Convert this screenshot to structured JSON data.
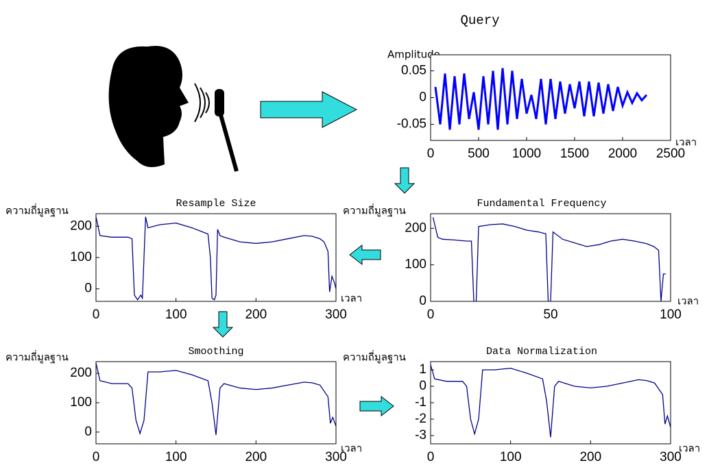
{
  "chart_data": [
    {
      "type": "line",
      "title": "Query",
      "ylabel": "Amplitude",
      "xlabel": "เวลา",
      "color": "#0000ff",
      "xlim": [
        0,
        2500
      ],
      "xticks": [
        0,
        500,
        1000,
        1500,
        2000,
        2500
      ],
      "ylim": [
        -0.08,
        0.08
      ],
      "yticks": [
        0.05,
        0,
        -0.05
      ],
      "x": [
        50,
        100,
        150,
        200,
        250,
        300,
        350,
        400,
        450,
        500,
        550,
        600,
        650,
        700,
        750,
        800,
        850,
        900,
        950,
        1000,
        1050,
        1100,
        1150,
        1200,
        1250,
        1300,
        1350,
        1400,
        1450,
        1500,
        1550,
        1600,
        1650,
        1700,
        1750,
        1800,
        1850,
        1900,
        1950,
        2000,
        2050,
        2100,
        2150,
        2200,
        2250
      ],
      "values": [
        0.02,
        -0.05,
        0.045,
        -0.06,
        0.04,
        -0.05,
        0.045,
        -0.04,
        0.01,
        -0.06,
        0.04,
        -0.05,
        0.05,
        -0.06,
        0.055,
        -0.05,
        0.05,
        -0.04,
        0.035,
        -0.03,
        0.005,
        -0.04,
        0.035,
        -0.05,
        0.035,
        -0.04,
        0.03,
        -0.03,
        0.025,
        -0.02,
        0.03,
        -0.035,
        0.03,
        -0.035,
        0.028,
        -0.03,
        0.025,
        -0.025,
        0.02,
        -0.015,
        0.01,
        -0.01,
        0.008,
        -0.005,
        0.005
      ]
    },
    {
      "type": "line",
      "title": "Fundamental Frequency",
      "ylabel": "ความถี่มูลฐาน",
      "xlabel": "เวลา",
      "color": "#00008b",
      "xlim": [
        0,
        100
      ],
      "xticks": [
        0,
        50,
        100
      ],
      "ylim": [
        0,
        240
      ],
      "yticks": [
        200,
        100,
        0
      ],
      "x": [
        1,
        3,
        5,
        10,
        15,
        17,
        18,
        19,
        20,
        25,
        30,
        35,
        40,
        45,
        48,
        49,
        50,
        51,
        55,
        60,
        65,
        70,
        75,
        80,
        85,
        90,
        93,
        95,
        96,
        97,
        98
      ],
      "values": [
        230,
        175,
        170,
        168,
        165,
        165,
        0,
        0,
        205,
        210,
        212,
        205,
        195,
        190,
        185,
        0,
        0,
        190,
        170,
        160,
        150,
        155,
        165,
        170,
        165,
        158,
        150,
        140,
        0,
        75,
        75
      ]
    },
    {
      "type": "line",
      "title": "Resample Size",
      "ylabel": "ความถี่มูลฐาน",
      "xlabel": "เวลา",
      "color": "#00008b",
      "xlim": [
        0,
        300
      ],
      "xticks": [
        0,
        100,
        200,
        300
      ],
      "ylim": [
        -40,
        240
      ],
      "yticks": [
        200,
        100,
        0
      ],
      "x": [
        0,
        5,
        20,
        40,
        45,
        48,
        52,
        56,
        58,
        62,
        65,
        80,
        100,
        120,
        130,
        140,
        143,
        145,
        148,
        150,
        152,
        155,
        160,
        180,
        200,
        220,
        240,
        260,
        270,
        280,
        285,
        290,
        292,
        295,
        298,
        300
      ],
      "values": [
        230,
        170,
        165,
        165,
        160,
        -20,
        -35,
        -20,
        -30,
        230,
        195,
        205,
        210,
        195,
        185,
        175,
        100,
        -30,
        -35,
        -20,
        190,
        170,
        165,
        150,
        145,
        150,
        160,
        170,
        168,
        160,
        150,
        120,
        -10,
        40,
        20,
        0
      ]
    },
    {
      "type": "line",
      "title": "Smoothing",
      "ylabel": "ความถี่มูลฐาน",
      "xlabel": "เวลา",
      "color": "#00008b",
      "xlim": [
        0,
        300
      ],
      "xticks": [
        0,
        100,
        200,
        300
      ],
      "ylim": [
        -40,
        240
      ],
      "yticks": [
        200,
        100,
        0
      ],
      "x": [
        0,
        5,
        20,
        40,
        45,
        50,
        55,
        60,
        65,
        80,
        100,
        120,
        140,
        145,
        150,
        155,
        160,
        180,
        200,
        220,
        240,
        260,
        270,
        280,
        290,
        293,
        296,
        300
      ],
      "values": [
        235,
        175,
        165,
        165,
        150,
        40,
        -5,
        40,
        205,
        205,
        210,
        195,
        175,
        100,
        -10,
        150,
        165,
        150,
        145,
        150,
        160,
        170,
        168,
        160,
        120,
        30,
        50,
        20
      ]
    },
    {
      "type": "line",
      "title": "Data Normalization",
      "ylabel": "ความถี่มูลฐาน",
      "xlabel": "เวลา",
      "color": "#00008b",
      "xlim": [
        0,
        300
      ],
      "xticks": [
        0,
        100,
        200,
        300
      ],
      "ylim": [
        -3.5,
        1.5
      ],
      "yticks": [
        1,
        0,
        -1,
        -2,
        -3
      ],
      "x": [
        0,
        5,
        20,
        40,
        45,
        50,
        55,
        60,
        65,
        80,
        100,
        120,
        140,
        145,
        150,
        155,
        160,
        180,
        200,
        220,
        240,
        260,
        270,
        280,
        290,
        293,
        296,
        300
      ],
      "values": [
        1.3,
        0.45,
        0.3,
        0.3,
        0,
        -2,
        -2.9,
        -2,
        1,
        1,
        1.1,
        0.8,
        0.45,
        -0.9,
        -3.1,
        0,
        0.3,
        0,
        -0.1,
        0,
        0.2,
        0.4,
        0.35,
        0.2,
        -0.5,
        -2.3,
        -1.8,
        -2.5
      ]
    }
  ]
}
